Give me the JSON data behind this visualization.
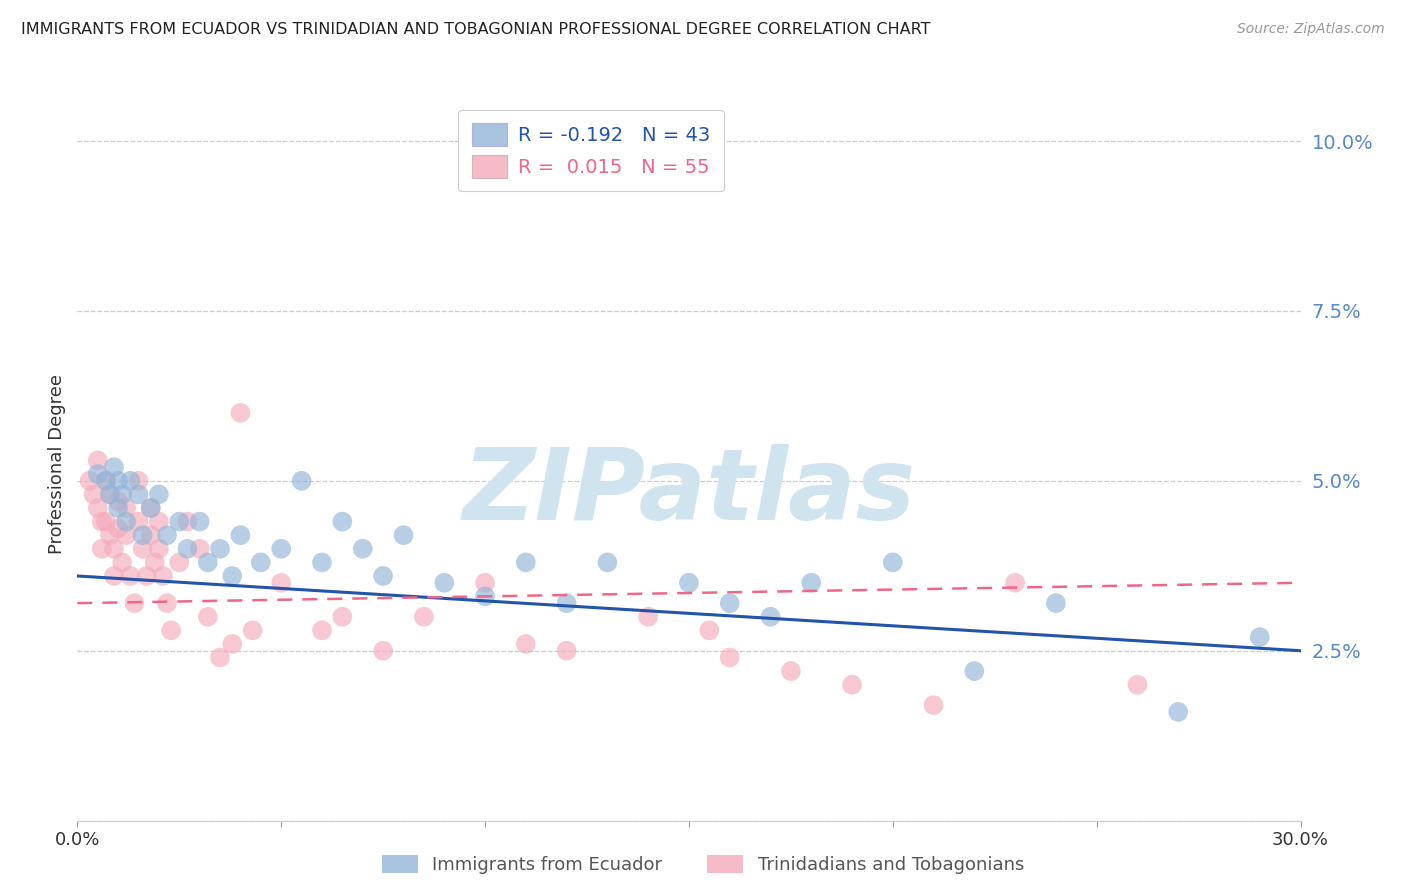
{
  "title": "IMMIGRANTS FROM ECUADOR VS TRINIDADIAN AND TOBAGONIAN PROFESSIONAL DEGREE CORRELATION CHART",
  "source": "Source: ZipAtlas.com",
  "ylabel": "Professional Degree",
  "yticks": [
    0.0,
    0.025,
    0.05,
    0.075,
    0.1
  ],
  "ytick_labels": [
    "",
    "2.5%",
    "5.0%",
    "7.5%",
    "10.0%"
  ],
  "xlim": [
    0.0,
    0.3
  ],
  "ylim": [
    0.0,
    0.105
  ],
  "legend1_r": "R = -0.192",
  "legend1_n": "N = 43",
  "legend2_r": "R =  0.015",
  "legend2_n": "N = 55",
  "legend_xlabel1": "Immigrants from Ecuador",
  "legend_xlabel2": "Trinidadians and Tobagonians",
  "blue_color": "#92B4D8",
  "pink_color": "#F4AABB",
  "blue_line_color": "#2255AA",
  "pink_line_color": "#EE6688",
  "watermark": "ZIPatlas",
  "watermark_color": "#D0E4F0",
  "blue_r_color": "#2255AA",
  "pink_r_color": "#EE6688",
  "blue_scatter_x": [
    0.005,
    0.007,
    0.008,
    0.009,
    0.01,
    0.01,
    0.011,
    0.012,
    0.013,
    0.015,
    0.016,
    0.018,
    0.02,
    0.022,
    0.025,
    0.027,
    0.03,
    0.032,
    0.035,
    0.038,
    0.04,
    0.045,
    0.05,
    0.055,
    0.06,
    0.065,
    0.07,
    0.075,
    0.08,
    0.09,
    0.1,
    0.11,
    0.12,
    0.13,
    0.15,
    0.16,
    0.17,
    0.18,
    0.2,
    0.22,
    0.24,
    0.27,
    0.29
  ],
  "blue_scatter_y": [
    0.051,
    0.05,
    0.048,
    0.052,
    0.05,
    0.046,
    0.048,
    0.044,
    0.05,
    0.048,
    0.042,
    0.046,
    0.048,
    0.042,
    0.044,
    0.04,
    0.044,
    0.038,
    0.04,
    0.036,
    0.042,
    0.038,
    0.04,
    0.05,
    0.038,
    0.044,
    0.04,
    0.036,
    0.042,
    0.035,
    0.033,
    0.038,
    0.032,
    0.038,
    0.035,
    0.032,
    0.03,
    0.035,
    0.038,
    0.022,
    0.032,
    0.016,
    0.027
  ],
  "pink_scatter_x": [
    0.003,
    0.004,
    0.005,
    0.005,
    0.006,
    0.006,
    0.007,
    0.007,
    0.008,
    0.008,
    0.009,
    0.009,
    0.01,
    0.01,
    0.011,
    0.012,
    0.012,
    0.013,
    0.014,
    0.015,
    0.015,
    0.016,
    0.017,
    0.018,
    0.018,
    0.019,
    0.02,
    0.02,
    0.021,
    0.022,
    0.023,
    0.025,
    0.027,
    0.03,
    0.032,
    0.035,
    0.038,
    0.04,
    0.043,
    0.05,
    0.06,
    0.065,
    0.075,
    0.085,
    0.1,
    0.11,
    0.12,
    0.14,
    0.155,
    0.16,
    0.175,
    0.19,
    0.21,
    0.23,
    0.26
  ],
  "pink_scatter_y": [
    0.05,
    0.048,
    0.053,
    0.046,
    0.044,
    0.04,
    0.05,
    0.044,
    0.048,
    0.042,
    0.04,
    0.036,
    0.047,
    0.043,
    0.038,
    0.046,
    0.042,
    0.036,
    0.032,
    0.05,
    0.044,
    0.04,
    0.036,
    0.046,
    0.042,
    0.038,
    0.044,
    0.04,
    0.036,
    0.032,
    0.028,
    0.038,
    0.044,
    0.04,
    0.03,
    0.024,
    0.026,
    0.06,
    0.028,
    0.035,
    0.028,
    0.03,
    0.025,
    0.03,
    0.035,
    0.026,
    0.025,
    0.03,
    0.028,
    0.024,
    0.022,
    0.02,
    0.017,
    0.035,
    0.02
  ],
  "blue_trendline_x": [
    0.0,
    0.3
  ],
  "blue_trendline_y": [
    0.036,
    0.025
  ],
  "pink_trendline_x": [
    0.0,
    0.3
  ],
  "pink_trendline_y": [
    0.032,
    0.035
  ]
}
